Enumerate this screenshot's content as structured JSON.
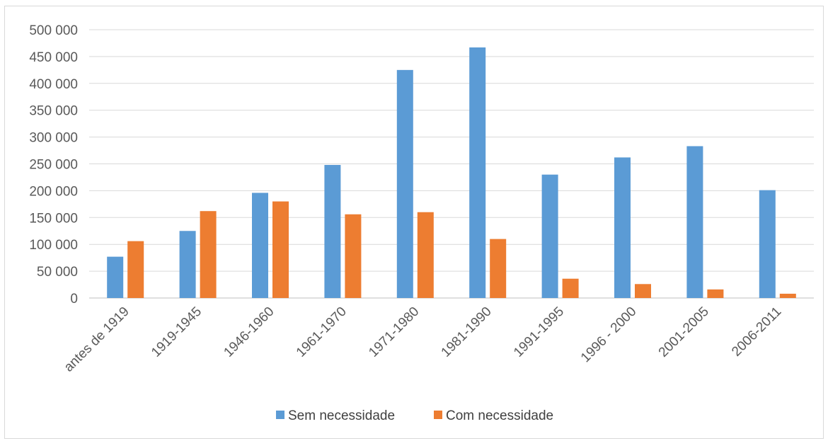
{
  "chart_data": {
    "type": "bar",
    "title": "",
    "xlabel": "",
    "ylabel": "",
    "categories": [
      "antes de 1919",
      "1919-1945",
      "1946-1960",
      "1961-1970",
      "1971-1980",
      "1981-1990",
      "1991-1995",
      "1996 - 2000",
      "2001-2005",
      "2006-2011"
    ],
    "series": [
      {
        "name": "Sem necessidade",
        "color": "#5b9bd5",
        "values": [
          77000,
          125000,
          196000,
          248000,
          425000,
          467000,
          230000,
          262000,
          283000,
          201000
        ]
      },
      {
        "name": "Com necessidade",
        "color": "#ed7d31",
        "values": [
          106000,
          162000,
          180000,
          156000,
          160000,
          110000,
          36000,
          26000,
          16000,
          8000
        ]
      }
    ],
    "ylim": [
      0,
      500000
    ],
    "yticks": [
      "0",
      "50 000",
      "100 000",
      "150 000",
      "200 000",
      "250 000",
      "300 000",
      "350 000",
      "400 000",
      "450 000",
      "500 000"
    ],
    "grid": true,
    "legend_position": "bottom"
  }
}
